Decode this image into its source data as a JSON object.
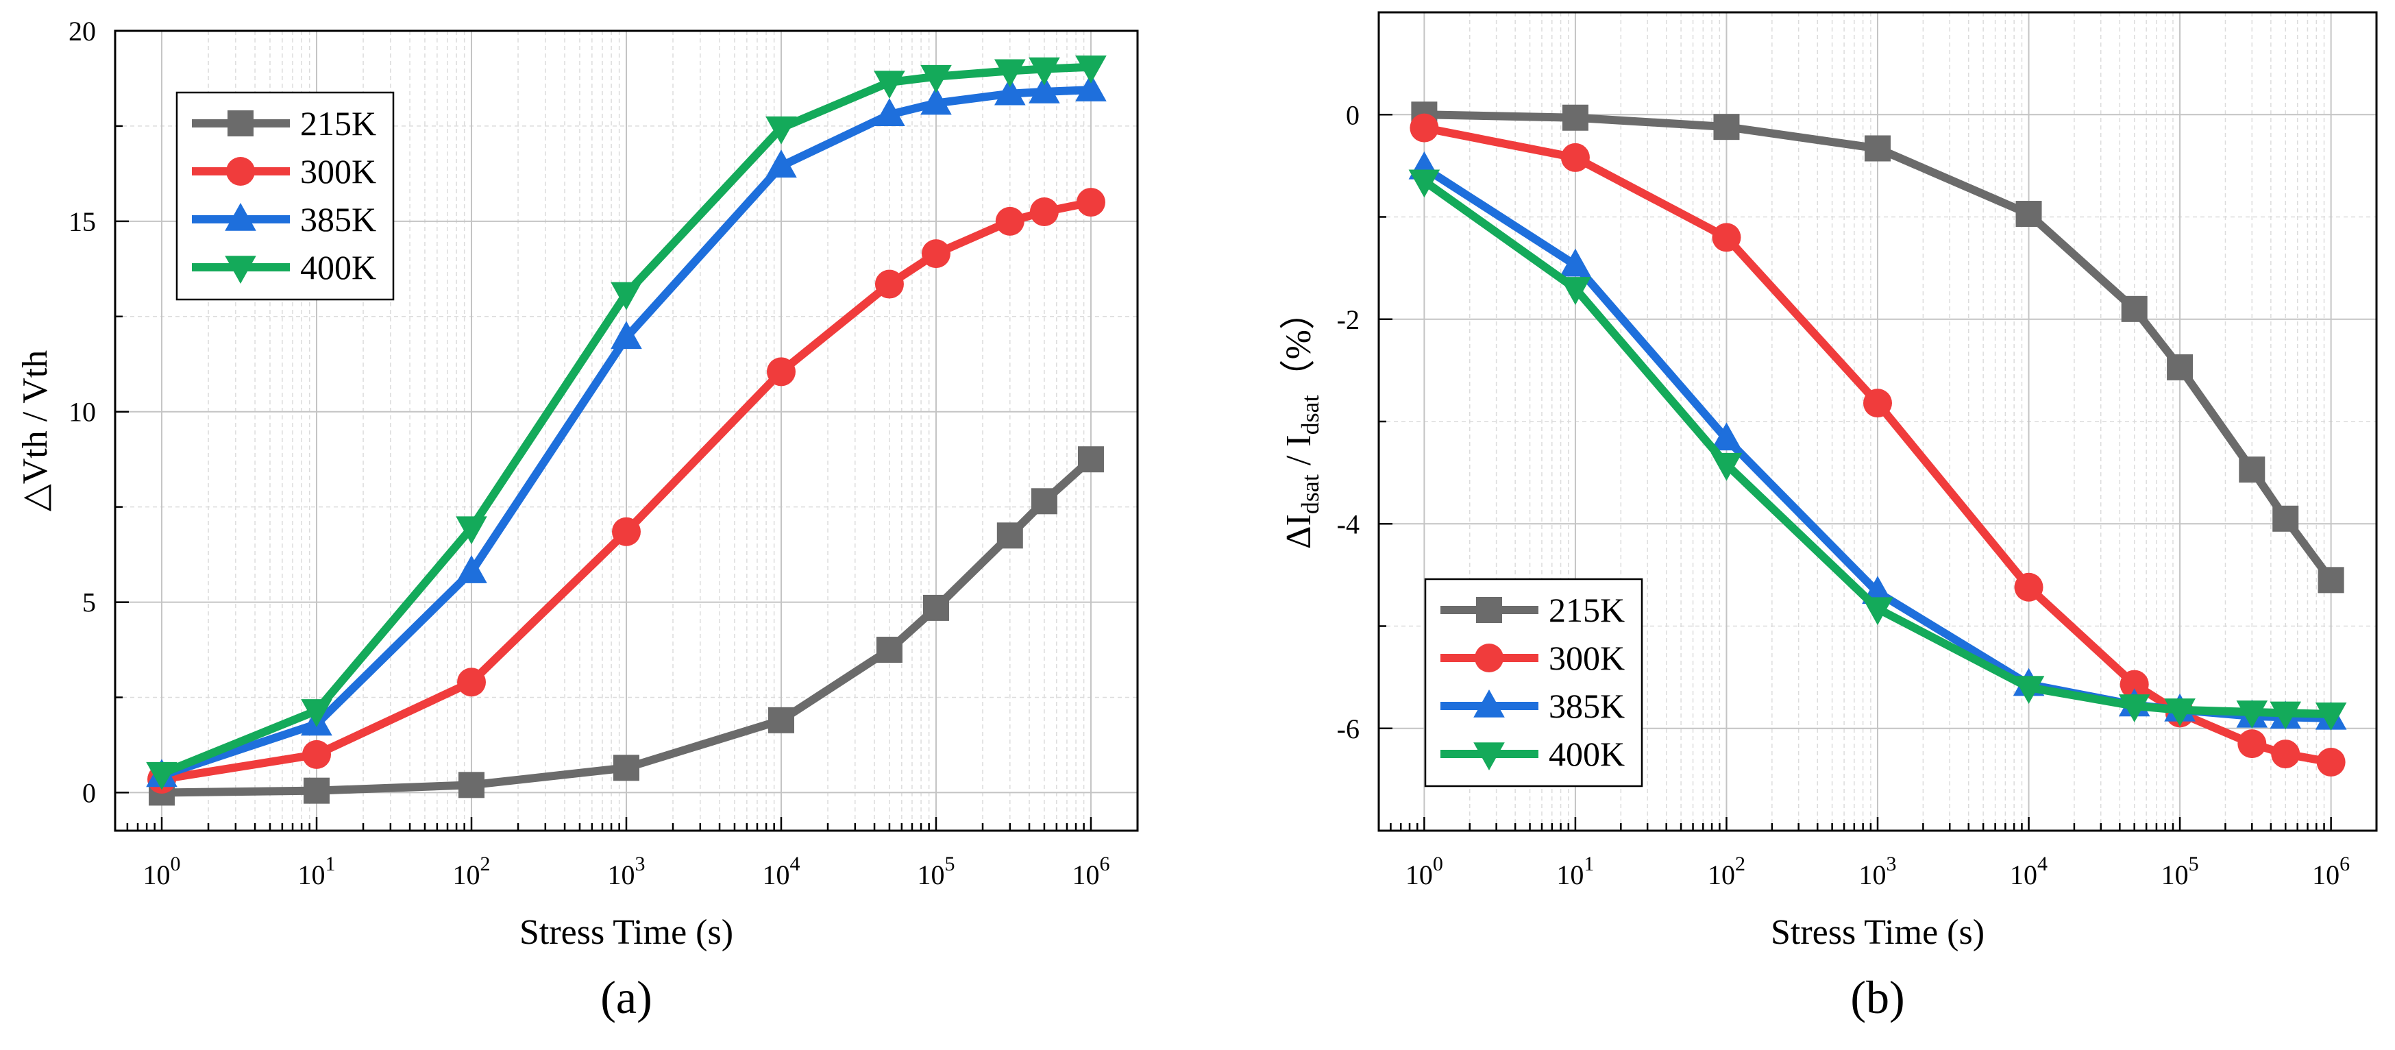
{
  "chart_data": [
    {
      "type": "line",
      "panel_label": "(a)",
      "xlabel": "Stress Time (s)",
      "ylabel": "△Vth / Vth",
      "x_scale": "log",
      "xlim": [
        0.5,
        2000000
      ],
      "ylim": [
        -1,
        20
      ],
      "x": [
        1,
        10,
        100,
        1000,
        10000,
        50000,
        100000,
        300000,
        500000,
        1000000
      ],
      "xticks": [
        {
          "value": 1,
          "base": "10",
          "exp": "0"
        },
        {
          "value": 10,
          "base": "10",
          "exp": "1"
        },
        {
          "value": 100,
          "base": "10",
          "exp": "2"
        },
        {
          "value": 1000,
          "base": "10",
          "exp": "3"
        },
        {
          "value": 10000,
          "base": "10",
          "exp": "4"
        },
        {
          "value": 100000,
          "base": "10",
          "exp": "5"
        },
        {
          "value": 1000000,
          "base": "10",
          "exp": "6"
        }
      ],
      "yticks": [
        {
          "value": 0,
          "label": "0"
        },
        {
          "value": 5,
          "label": "5"
        },
        {
          "value": 10,
          "label": "10"
        },
        {
          "value": 15,
          "label": "15"
        },
        {
          "value": 20,
          "label": "20"
        }
      ],
      "grid": true,
      "legend_position": "top-left",
      "series": [
        {
          "name": "215K",
          "color": "#6b6b6b",
          "marker": "square",
          "values": [
            0.0,
            0.05,
            0.2,
            0.65,
            1.9,
            3.75,
            4.85,
            6.75,
            7.65,
            8.75
          ]
        },
        {
          "name": "300K",
          "color": "#f03c3c",
          "marker": "circle",
          "values": [
            0.35,
            1.0,
            2.9,
            6.85,
            11.05,
            13.35,
            14.15,
            15.0,
            15.25,
            15.5
          ]
        },
        {
          "name": "385K",
          "color": "#1e6fdc",
          "marker": "triangle-up",
          "values": [
            0.45,
            1.8,
            5.8,
            11.95,
            16.45,
            17.8,
            18.1,
            18.35,
            18.4,
            18.45
          ]
        },
        {
          "name": "400K",
          "color": "#14aa5a",
          "marker": "triangle-down",
          "values": [
            0.5,
            2.15,
            6.95,
            13.1,
            17.45,
            18.65,
            18.8,
            18.95,
            19.0,
            19.05
          ]
        }
      ]
    },
    {
      "type": "line",
      "panel_label": "(b)",
      "xlabel": "Stress Time (s)",
      "ylabel_parts": {
        "delta": "ΔI",
        "sub1": "dsat",
        "mid": " / I",
        "sub2": "dsat",
        "unit": "（%）"
      },
      "x_scale": "log",
      "xlim": [
        0.5,
        2000000
      ],
      "ylim": [
        -7,
        1
      ],
      "x": [
        1,
        10,
        100,
        1000,
        10000,
        50000,
        100000,
        300000,
        500000,
        1000000
      ],
      "xticks": [
        {
          "value": 1,
          "base": "10",
          "exp": "0"
        },
        {
          "value": 10,
          "base": "10",
          "exp": "1"
        },
        {
          "value": 100,
          "base": "10",
          "exp": "2"
        },
        {
          "value": 1000,
          "base": "10",
          "exp": "3"
        },
        {
          "value": 10000,
          "base": "10",
          "exp": "4"
        },
        {
          "value": 100000,
          "base": "10",
          "exp": "5"
        },
        {
          "value": 1000000,
          "base": "10",
          "exp": "6"
        }
      ],
      "yticks": [
        {
          "value": 0,
          "label": "0"
        },
        {
          "value": -2,
          "label": "-2"
        },
        {
          "value": -4,
          "label": "-4"
        },
        {
          "value": -6,
          "label": "-6"
        }
      ],
      "grid": true,
      "legend_position": "bottom-left",
      "series": [
        {
          "name": "215K",
          "color": "#6b6b6b",
          "marker": "square",
          "values": [
            0.0,
            -0.03,
            -0.12,
            -0.33,
            -0.97,
            -1.9,
            -2.47,
            -3.47,
            -3.95,
            -4.55
          ]
        },
        {
          "name": "300K",
          "color": "#f03c3c",
          "marker": "circle",
          "values": [
            -0.13,
            -0.42,
            -1.2,
            -2.82,
            -4.62,
            -5.57,
            -5.85,
            -6.15,
            -6.25,
            -6.33
          ]
        },
        {
          "name": "385K",
          "color": "#1e6fdc",
          "marker": "triangle-up",
          "values": [
            -0.52,
            -1.47,
            -3.17,
            -4.67,
            -5.57,
            -5.77,
            -5.82,
            -5.88,
            -5.89,
            -5.9
          ]
        },
        {
          "name": "400K",
          "color": "#14aa5a",
          "marker": "triangle-down",
          "values": [
            -0.65,
            -1.7,
            -3.42,
            -4.83,
            -5.6,
            -5.78,
            -5.82,
            -5.84,
            -5.85,
            -5.86
          ]
        }
      ]
    }
  ]
}
